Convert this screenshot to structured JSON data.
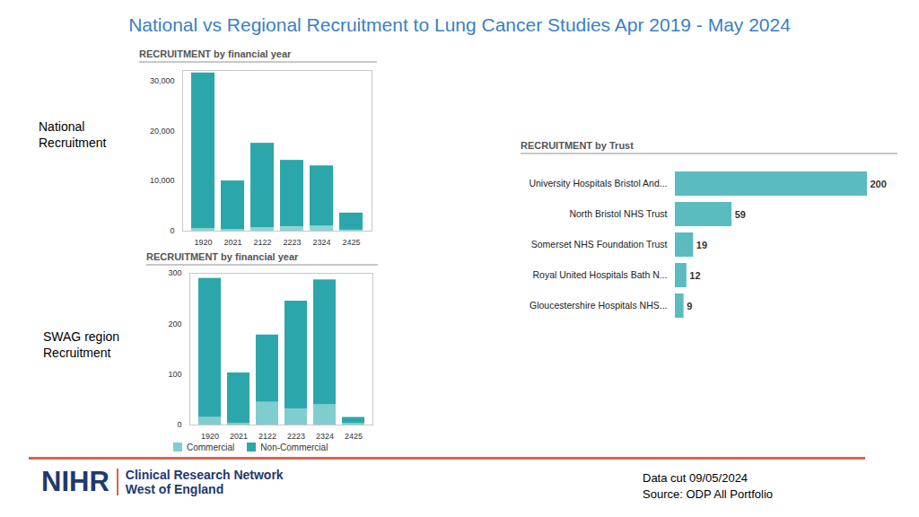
{
  "title": "National vs Regional Recruitment to Lung Cancer Studies Apr 2019 - May 2024",
  "chart_data": [
    {
      "type": "bar",
      "title": "RECRUITMENT by financial year",
      "annotation": "National Recruitment",
      "stacked": true,
      "categories": [
        "1920",
        "2021",
        "2122",
        "2223",
        "2324",
        "2425"
      ],
      "series": [
        {
          "color": "#8fd3d5",
          "values": [
            500,
            300,
            700,
            900,
            1000,
            200
          ]
        },
        {
          "color": "#2ba7ab",
          "values": [
            31000,
            9700,
            16800,
            13200,
            12000,
            3400
          ]
        }
      ],
      "ylim": [
        0,
        32000
      ],
      "yticks": [
        0,
        {
          "value": 10000,
          "label": "10,000"
        },
        {
          "value": 20000,
          "label": "20,000"
        },
        {
          "value": 30000,
          "label": "30,000"
        }
      ]
    },
    {
      "type": "bar",
      "title": "RECRUITMENT by financial year",
      "annotation": "SWAG region Recruitment",
      "stacked": true,
      "legend": "bottom left",
      "categories": [
        "1920",
        "2021",
        "2122",
        "2223",
        "2324",
        "2425"
      ],
      "series": [
        {
          "name": "Commercial",
          "color": "#80cdd0",
          "values": [
            15,
            3,
            45,
            32,
            40,
            3
          ]
        },
        {
          "name": "Non-Commercial",
          "color": "#2ba7ab",
          "values": [
            275,
            100,
            133,
            213,
            247,
            12
          ]
        }
      ],
      "ylim": [
        0,
        300
      ],
      "yticks": [
        0,
        100,
        200,
        300
      ]
    },
    {
      "type": "bar",
      "title": "RECRUITMENT by Trust",
      "orientation": "horizontal",
      "data_labels": true,
      "tick_labels": "y",
      "color": "#5bbcc0",
      "categories": [
        "University Hospitals Bristol And...",
        "North Bristol NHS Trust",
        "Somerset NHS Foundation Trust",
        "Royal United Hospitals Bath N...",
        "Gloucestershire Hospitals NHS..."
      ],
      "values": [
        200,
        59,
        19,
        12,
        9
      ],
      "xlim": [
        0,
        200
      ]
    }
  ],
  "footer": {
    "logo": "NIHR",
    "network": "Clinical Research Network",
    "region": "West of England",
    "notes": [
      "Data cut 09/05/2024",
      "Source: ODP All Portfolio"
    ]
  }
}
